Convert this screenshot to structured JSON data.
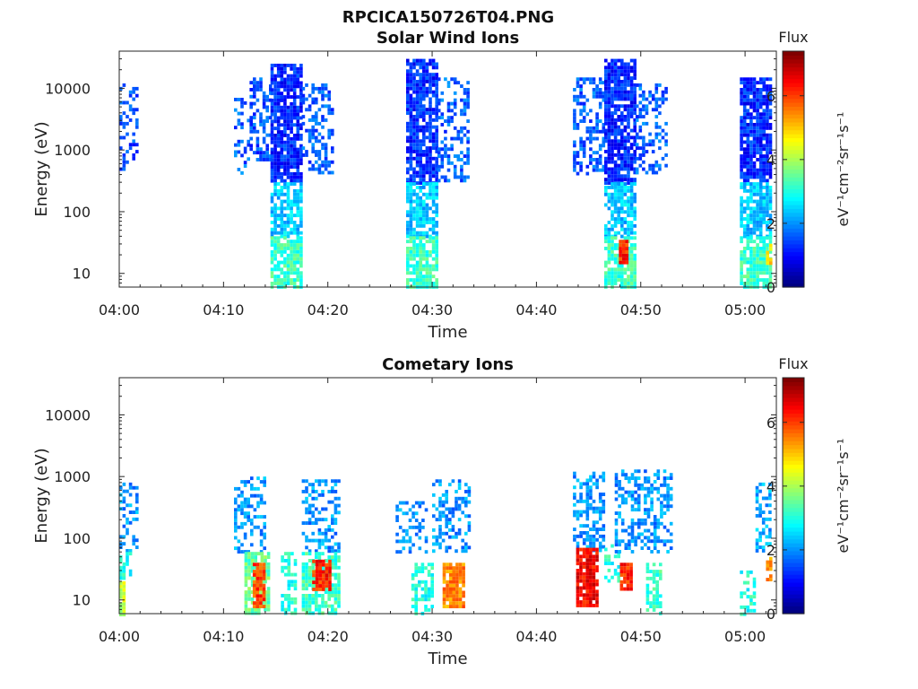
{
  "figure_title": "RPCICA150726T04.PNG",
  "colorbar_scale": [
    "#00007f",
    "#0000ff",
    "#007fff",
    "#00ffff",
    "#7fff7f",
    "#ffff00",
    "#ff7f00",
    "#ff0000",
    "#7f0000"
  ],
  "chart_data": [
    {
      "type": "heatmap",
      "title": "Solar Wind Ions",
      "xlabel": "Time",
      "ylabel": "Energy (eV)",
      "x_ticks": [
        "04:00",
        "04:10",
        "04:20",
        "04:30",
        "04:40",
        "04:50",
        "05:00"
      ],
      "x_range_min": [
        0,
        63
      ],
      "y_scale": "log",
      "y_ticks": [
        "10",
        "100",
        "1000",
        "10000"
      ],
      "y_range": [
        6,
        40000
      ],
      "colorbar": {
        "label": "Flux",
        "unit": "eV⁻¹cm⁻²sr⁻¹s⁻¹",
        "range": [
          0,
          7.4
        ],
        "ticks": [
          "0",
          "2",
          "4",
          "6"
        ]
      },
      "clusters": [
        {
          "t": [
            0.0,
            1.7
          ],
          "e": [
            500,
            12000
          ],
          "flux": 1.5,
          "density": 0.35
        },
        {
          "t": [
            11.0,
            12.5
          ],
          "e": [
            400,
            8000
          ],
          "flux": 1.6,
          "density": 0.35
        },
        {
          "t": [
            12.5,
            14.5
          ],
          "e": [
            700,
            15000
          ],
          "flux": 1.5,
          "density": 0.45
        },
        {
          "t": [
            14.5,
            17.5
          ],
          "e": [
            300,
            25000
          ],
          "flux": 1.2,
          "density": 0.85
        },
        {
          "t": [
            14.5,
            17.5
          ],
          "e": [
            40,
            300
          ],
          "flux": 2.4,
          "density": 0.75
        },
        {
          "t": [
            14.5,
            17.5
          ],
          "e": [
            6,
            40
          ],
          "flux": 3.2,
          "density": 0.8
        },
        {
          "t": [
            17.5,
            20.5
          ],
          "e": [
            400,
            12000
          ],
          "flux": 1.6,
          "density": 0.45
        },
        {
          "t": [
            27.5,
            30.5
          ],
          "e": [
            300,
            30000
          ],
          "flux": 1.2,
          "density": 0.85
        },
        {
          "t": [
            27.5,
            30.5
          ],
          "e": [
            40,
            300
          ],
          "flux": 2.4,
          "density": 0.75
        },
        {
          "t": [
            27.5,
            30.5
          ],
          "e": [
            6,
            40
          ],
          "flux": 3.2,
          "density": 0.8
        },
        {
          "t": [
            30.5,
            33.5
          ],
          "e": [
            300,
            15000
          ],
          "flux": 1.6,
          "density": 0.4
        },
        {
          "t": [
            43.5,
            46.5
          ],
          "e": [
            400,
            15000
          ],
          "flux": 1.6,
          "density": 0.45
        },
        {
          "t": [
            46.5,
            49.5
          ],
          "e": [
            300,
            30000
          ],
          "flux": 1.2,
          "density": 0.85
        },
        {
          "t": [
            46.5,
            49.5
          ],
          "e": [
            40,
            300
          ],
          "flux": 2.4,
          "density": 0.75
        },
        {
          "t": [
            46.5,
            49.5
          ],
          "e": [
            6,
            40
          ],
          "flux": 3.2,
          "density": 0.8
        },
        {
          "t": [
            47.9,
            48.6
          ],
          "e": [
            15,
            35
          ],
          "flux": 6.2,
          "density": 1.0
        },
        {
          "t": [
            49.5,
            52.5
          ],
          "e": [
            400,
            12000
          ],
          "flux": 1.6,
          "density": 0.4
        },
        {
          "t": [
            59.5,
            62.5
          ],
          "e": [
            300,
            15000
          ],
          "flux": 1.2,
          "density": 0.85
        },
        {
          "t": [
            59.5,
            62.5
          ],
          "e": [
            40,
            300
          ],
          "flux": 2.4,
          "density": 0.75
        },
        {
          "t": [
            59.5,
            62.5
          ],
          "e": [
            6,
            40
          ],
          "flux": 3.2,
          "density": 0.8
        },
        {
          "t": [
            62.0,
            62.5
          ],
          "e": [
            15,
            30
          ],
          "flux": 4.8,
          "density": 0.9
        }
      ]
    },
    {
      "type": "heatmap",
      "title": "Cometary Ions",
      "xlabel": "Time",
      "ylabel": "Energy (eV)",
      "x_ticks": [
        "04:00",
        "04:10",
        "04:20",
        "04:30",
        "04:40",
        "04:50",
        "05:00"
      ],
      "x_range_min": [
        0,
        63
      ],
      "y_scale": "log",
      "y_ticks": [
        "10",
        "100",
        "1000",
        "10000"
      ],
      "y_range": [
        6,
        40000
      ],
      "colorbar": {
        "label": "Flux",
        "unit": "eV⁻¹cm⁻²sr⁻¹s⁻¹",
        "range": [
          0,
          7.4
        ],
        "ticks": [
          "0",
          "2",
          "4",
          "6"
        ]
      },
      "clusters": [
        {
          "t": [
            0.0,
            1.7
          ],
          "e": [
            60,
            800
          ],
          "flux": 2.0,
          "density": 0.4
        },
        {
          "t": [
            0.0,
            0.6
          ],
          "e": [
            6,
            20
          ],
          "flux": 4.2,
          "density": 0.9
        },
        {
          "t": [
            0.0,
            1.0
          ],
          "e": [
            20,
            60
          ],
          "flux": 3.0,
          "density": 0.5
        },
        {
          "t": [
            11.0,
            14.0
          ],
          "e": [
            60,
            1000
          ],
          "flux": 2.0,
          "density": 0.45
        },
        {
          "t": [
            12.0,
            14.5
          ],
          "e": [
            6,
            60
          ],
          "flux": 3.5,
          "density": 0.8
        },
        {
          "t": [
            12.8,
            13.8
          ],
          "e": [
            8,
            40
          ],
          "flux": 6.0,
          "density": 0.9
        },
        {
          "t": [
            15.5,
            17.0
          ],
          "e": [
            6,
            60
          ],
          "flux": 3.0,
          "density": 0.6
        },
        {
          "t": [
            17.5,
            21.0
          ],
          "e": [
            60,
            900
          ],
          "flux": 2.0,
          "density": 0.45
        },
        {
          "t": [
            17.5,
            21.0
          ],
          "e": [
            6,
            60
          ],
          "flux": 3.2,
          "density": 0.7
        },
        {
          "t": [
            18.5,
            20.3
          ],
          "e": [
            15,
            45
          ],
          "flux": 6.2,
          "density": 0.9
        },
        {
          "t": [
            26.5,
            29.5
          ],
          "e": [
            60,
            400
          ],
          "flux": 2.0,
          "density": 0.4
        },
        {
          "t": [
            28.0,
            30.0
          ],
          "e": [
            6,
            40
          ],
          "flux": 3.0,
          "density": 0.55
        },
        {
          "t": [
            30.0,
            33.5
          ],
          "e": [
            60,
            900
          ],
          "flux": 2.0,
          "density": 0.45
        },
        {
          "t": [
            31.0,
            33.0
          ],
          "e": [
            8,
            40
          ],
          "flux": 5.5,
          "density": 0.85
        },
        {
          "t": [
            43.5,
            46.5
          ],
          "e": [
            60,
            1200
          ],
          "flux": 2.0,
          "density": 0.45
        },
        {
          "t": [
            43.8,
            45.8
          ],
          "e": [
            8,
            70
          ],
          "flux": 6.5,
          "density": 0.9
        },
        {
          "t": [
            46.5,
            48.0
          ],
          "e": [
            20,
            80
          ],
          "flux": 3.0,
          "density": 0.5
        },
        {
          "t": [
            47.5,
            53.0
          ],
          "e": [
            60,
            1300
          ],
          "flux": 2.0,
          "density": 0.45
        },
        {
          "t": [
            48.0,
            49.0
          ],
          "e": [
            15,
            40
          ],
          "flux": 6.2,
          "density": 0.9
        },
        {
          "t": [
            50.5,
            52.0
          ],
          "e": [
            6,
            40
          ],
          "flux": 3.2,
          "density": 0.6
        },
        {
          "t": [
            59.5,
            61.0
          ],
          "e": [
            6,
            30
          ],
          "flux": 3.0,
          "density": 0.5
        },
        {
          "t": [
            61.0,
            62.5
          ],
          "e": [
            60,
            800
          ],
          "flux": 2.2,
          "density": 0.45
        },
        {
          "t": [
            62.0,
            62.5
          ],
          "e": [
            20,
            50
          ],
          "flux": 5.5,
          "density": 0.9
        }
      ]
    }
  ]
}
